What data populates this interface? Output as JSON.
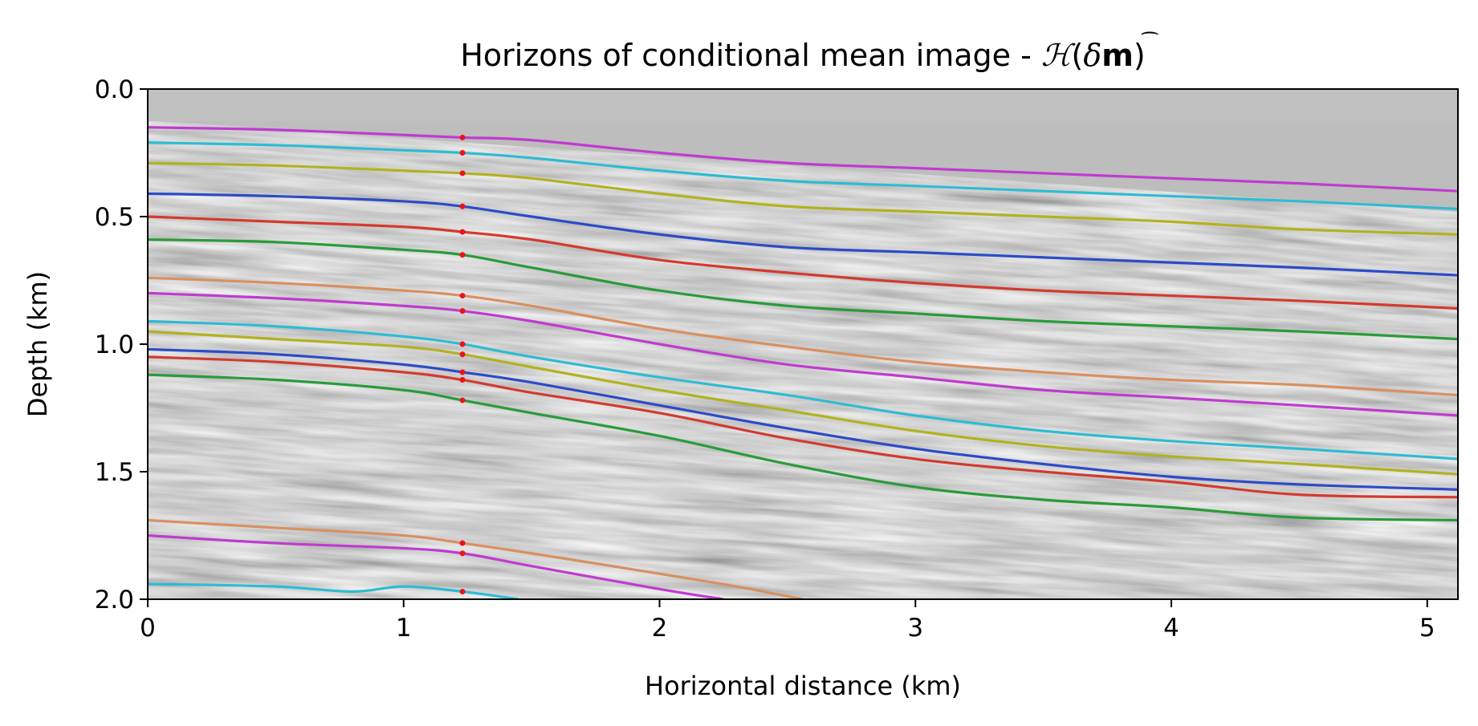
{
  "chart_data": {
    "type": "line",
    "title": "Horizons of conditional mean image - ",
    "title_math": {
      "script_H": "ℋ",
      "open": "(",
      "delta": "δ",
      "m": "m",
      "close": ")",
      "hat": "⌢"
    },
    "xlabel": "Horizontal distance (km)",
    "ylabel": "Depth (km)",
    "xlim": [
      0,
      5.12
    ],
    "ylim": [
      2.0,
      0.0
    ],
    "x_ticks": [
      "0",
      "1",
      "2",
      "3",
      "4",
      "5"
    ],
    "y_ticks": [
      "0.0",
      "0.5",
      "1.0",
      "1.5",
      "2.0"
    ],
    "background": "grayscale seismic image",
    "grid": false,
    "legend": "none",
    "marker_x": 1.23,
    "marker_color": "#e8141c",
    "series": [
      {
        "color": "#c03bd0",
        "points": [
          [
            0,
            0.15
          ],
          [
            0.5,
            0.16
          ],
          [
            1.0,
            0.18
          ],
          [
            1.23,
            0.19
          ],
          [
            1.5,
            0.2
          ],
          [
            2.0,
            0.25
          ],
          [
            2.5,
            0.29
          ],
          [
            3.0,
            0.31
          ],
          [
            3.5,
            0.33
          ],
          [
            4.0,
            0.35
          ],
          [
            4.5,
            0.37
          ],
          [
            5.12,
            0.4
          ]
        ]
      },
      {
        "color": "#2ebcd2",
        "points": [
          [
            0,
            0.21
          ],
          [
            0.5,
            0.22
          ],
          [
            1.0,
            0.24
          ],
          [
            1.23,
            0.25
          ],
          [
            1.5,
            0.27
          ],
          [
            2.0,
            0.32
          ],
          [
            2.5,
            0.36
          ],
          [
            3.0,
            0.38
          ],
          [
            3.5,
            0.4
          ],
          [
            4.0,
            0.42
          ],
          [
            4.5,
            0.44
          ],
          [
            5.12,
            0.47
          ]
        ]
      },
      {
        "color": "#b2b222",
        "points": [
          [
            0,
            0.29
          ],
          [
            0.5,
            0.3
          ],
          [
            1.0,
            0.32
          ],
          [
            1.23,
            0.33
          ],
          [
            1.5,
            0.35
          ],
          [
            2.0,
            0.41
          ],
          [
            2.5,
            0.46
          ],
          [
            3.0,
            0.48
          ],
          [
            3.5,
            0.5
          ],
          [
            4.0,
            0.52
          ],
          [
            4.5,
            0.55
          ],
          [
            5.12,
            0.57
          ]
        ]
      },
      {
        "color": "#2d4bc8",
        "points": [
          [
            0,
            0.41
          ],
          [
            0.5,
            0.42
          ],
          [
            1.0,
            0.44
          ],
          [
            1.23,
            0.46
          ],
          [
            1.5,
            0.5
          ],
          [
            2.0,
            0.57
          ],
          [
            2.5,
            0.62
          ],
          [
            3.0,
            0.64
          ],
          [
            3.5,
            0.66
          ],
          [
            4.0,
            0.68
          ],
          [
            4.5,
            0.7
          ],
          [
            5.12,
            0.73
          ]
        ]
      },
      {
        "color": "#d43a30",
        "points": [
          [
            0,
            0.5
          ],
          [
            0.5,
            0.52
          ],
          [
            1.0,
            0.54
          ],
          [
            1.23,
            0.56
          ],
          [
            1.5,
            0.59
          ],
          [
            2.0,
            0.67
          ],
          [
            2.5,
            0.72
          ],
          [
            3.0,
            0.76
          ],
          [
            3.5,
            0.79
          ],
          [
            4.0,
            0.81
          ],
          [
            4.5,
            0.83
          ],
          [
            5.12,
            0.86
          ]
        ]
      },
      {
        "color": "#2a9b3a",
        "points": [
          [
            0,
            0.59
          ],
          [
            0.5,
            0.6
          ],
          [
            1.0,
            0.63
          ],
          [
            1.23,
            0.65
          ],
          [
            1.5,
            0.7
          ],
          [
            2.0,
            0.79
          ],
          [
            2.5,
            0.85
          ],
          [
            3.0,
            0.88
          ],
          [
            3.5,
            0.91
          ],
          [
            4.0,
            0.93
          ],
          [
            4.5,
            0.95
          ],
          [
            5.12,
            0.98
          ]
        ]
      },
      {
        "color": "#d89060",
        "points": [
          [
            0,
            0.74
          ],
          [
            0.5,
            0.76
          ],
          [
            1.0,
            0.79
          ],
          [
            1.23,
            0.81
          ],
          [
            1.5,
            0.85
          ],
          [
            2.0,
            0.94
          ],
          [
            2.5,
            1.01
          ],
          [
            3.0,
            1.07
          ],
          [
            3.5,
            1.11
          ],
          [
            4.0,
            1.14
          ],
          [
            4.5,
            1.16
          ],
          [
            5.12,
            1.2
          ]
        ]
      },
      {
        "color": "#c03bd0",
        "points": [
          [
            0,
            0.8
          ],
          [
            0.5,
            0.82
          ],
          [
            1.0,
            0.85
          ],
          [
            1.23,
            0.87
          ],
          [
            1.5,
            0.91
          ],
          [
            2.0,
            1.0
          ],
          [
            2.5,
            1.08
          ],
          [
            3.0,
            1.13
          ],
          [
            3.5,
            1.18
          ],
          [
            4.0,
            1.21
          ],
          [
            4.5,
            1.24
          ],
          [
            5.12,
            1.28
          ]
        ]
      },
      {
        "color": "#2ebcd2",
        "points": [
          [
            0,
            0.91
          ],
          [
            0.5,
            0.93
          ],
          [
            1.0,
            0.97
          ],
          [
            1.23,
            1.0
          ],
          [
            1.5,
            1.05
          ],
          [
            2.0,
            1.13
          ],
          [
            2.5,
            1.2
          ],
          [
            3.0,
            1.28
          ],
          [
            3.5,
            1.34
          ],
          [
            4.0,
            1.38
          ],
          [
            4.5,
            1.41
          ],
          [
            5.12,
            1.45
          ]
        ]
      },
      {
        "color": "#b2b222",
        "points": [
          [
            0,
            0.95
          ],
          [
            0.5,
            0.98
          ],
          [
            1.0,
            1.01
          ],
          [
            1.23,
            1.04
          ],
          [
            1.5,
            1.09
          ],
          [
            2.0,
            1.18
          ],
          [
            2.5,
            1.26
          ],
          [
            3.0,
            1.34
          ],
          [
            3.5,
            1.4
          ],
          [
            4.0,
            1.44
          ],
          [
            4.5,
            1.47
          ],
          [
            5.12,
            1.51
          ]
        ]
      },
      {
        "color": "#2d4bc8",
        "points": [
          [
            0,
            1.02
          ],
          [
            0.5,
            1.04
          ],
          [
            1.0,
            1.08
          ],
          [
            1.23,
            1.11
          ],
          [
            1.5,
            1.15
          ],
          [
            2.0,
            1.24
          ],
          [
            2.5,
            1.33
          ],
          [
            3.0,
            1.41
          ],
          [
            3.5,
            1.47
          ],
          [
            4.0,
            1.52
          ],
          [
            4.5,
            1.55
          ],
          [
            5.12,
            1.57
          ]
        ]
      },
      {
        "color": "#d43a30",
        "points": [
          [
            0,
            1.05
          ],
          [
            0.5,
            1.07
          ],
          [
            1.0,
            1.11
          ],
          [
            1.23,
            1.14
          ],
          [
            1.5,
            1.19
          ],
          [
            2.0,
            1.27
          ],
          [
            2.5,
            1.37
          ],
          [
            3.0,
            1.45
          ],
          [
            3.5,
            1.5
          ],
          [
            4.0,
            1.54
          ],
          [
            4.5,
            1.59
          ],
          [
            5.12,
            1.6
          ]
        ]
      },
      {
        "color": "#2a9b3a",
        "points": [
          [
            0,
            1.12
          ],
          [
            0.5,
            1.14
          ],
          [
            1.0,
            1.18
          ],
          [
            1.23,
            1.22
          ],
          [
            1.5,
            1.27
          ],
          [
            2.0,
            1.36
          ],
          [
            2.5,
            1.47
          ],
          [
            3.0,
            1.56
          ],
          [
            3.5,
            1.61
          ],
          [
            4.0,
            1.64
          ],
          [
            4.5,
            1.68
          ],
          [
            5.12,
            1.69
          ]
        ]
      },
      {
        "color": "#d89060",
        "points": [
          [
            0,
            1.69
          ],
          [
            0.5,
            1.72
          ],
          [
            1.0,
            1.75
          ],
          [
            1.23,
            1.78
          ],
          [
            1.5,
            1.82
          ],
          [
            2.0,
            1.9
          ],
          [
            2.3,
            1.95
          ],
          [
            2.56,
            2.0
          ]
        ]
      },
      {
        "color": "#c03bd0",
        "points": [
          [
            0,
            1.75
          ],
          [
            0.5,
            1.78
          ],
          [
            1.0,
            1.8
          ],
          [
            1.23,
            1.82
          ],
          [
            1.5,
            1.87
          ],
          [
            2.0,
            1.96
          ],
          [
            2.25,
            2.0
          ]
        ]
      },
      {
        "color": "#2ebcd2",
        "points": [
          [
            0,
            1.94
          ],
          [
            0.5,
            1.95
          ],
          [
            0.8,
            1.97
          ],
          [
            1.0,
            1.95
          ],
          [
            1.23,
            1.97
          ],
          [
            1.45,
            2.0
          ]
        ]
      }
    ]
  }
}
